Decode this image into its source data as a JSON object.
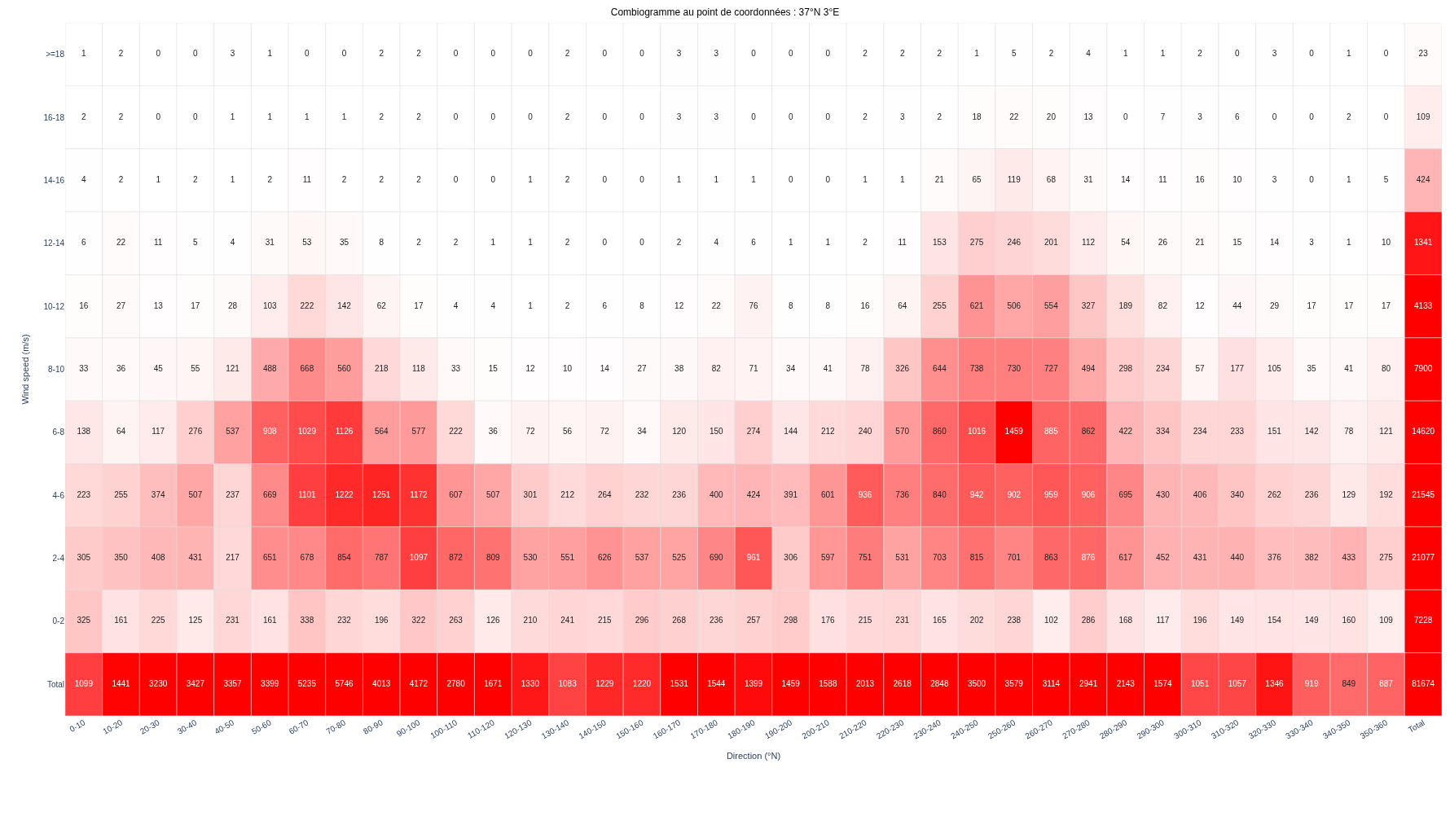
{
  "chart_data": {
    "type": "heatmap",
    "title": "Combiogramme au point de coordonnées : 37°N 3°E",
    "xlabel": "Direction (°N)",
    "ylabel": "Wind speed (m/s)",
    "categories": [
      "0-10",
      "10-20",
      "20-30",
      "30-40",
      "40-50",
      "50-60",
      "60-70",
      "70-80",
      "80-90",
      "90-100",
      "100-110",
      "110-120",
      "120-130",
      "130-140",
      "140-150",
      "150-160",
      "160-170",
      "170-180",
      "180-190",
      "190-200",
      "200-210",
      "210-220",
      "220-230",
      "230-240",
      "240-250",
      "250-260",
      "260-270",
      "270-280",
      "280-290",
      "290-300",
      "300-310",
      "310-320",
      "320-330",
      "330-340",
      "340-350",
      "350-360",
      "Total"
    ],
    "y_categories": [
      ">=18",
      "16-18",
      "14-16",
      "12-14",
      "10-12",
      "8-10",
      "6-8",
      "4-6",
      "2-4",
      "0-2",
      "Total"
    ],
    "cells": [
      [
        1,
        2,
        0,
        0,
        3,
        1,
        0,
        0,
        2,
        2,
        0,
        0,
        0,
        2,
        0,
        0,
        3,
        3,
        0,
        0,
        0,
        2,
        2,
        2,
        1,
        5,
        2,
        4,
        1,
        1,
        2,
        0,
        3,
        0,
        1,
        0,
        23
      ],
      [
        2,
        2,
        0,
        0,
        1,
        1,
        1,
        1,
        2,
        2,
        0,
        0,
        0,
        2,
        0,
        0,
        3,
        3,
        0,
        0,
        0,
        2,
        3,
        2,
        18,
        22,
        20,
        13,
        0,
        7,
        3,
        6,
        0,
        0,
        2,
        0,
        109
      ],
      [
        4,
        2,
        1,
        2,
        1,
        2,
        11,
        2,
        2,
        2,
        0,
        0,
        1,
        2,
        0,
        0,
        1,
        1,
        1,
        0,
        0,
        1,
        1,
        21,
        65,
        119,
        68,
        31,
        14,
        11,
        16,
        10,
        3,
        0,
        1,
        5,
        424
      ],
      [
        6,
        22,
        11,
        5,
        4,
        31,
        53,
        35,
        8,
        2,
        2,
        1,
        1,
        2,
        0,
        0,
        2,
        4,
        6,
        1,
        1,
        2,
        11,
        153,
        275,
        246,
        201,
        112,
        54,
        26,
        21,
        15,
        14,
        3,
        1,
        10,
        1341
      ],
      [
        16,
        27,
        13,
        17,
        28,
        103,
        222,
        142,
        62,
        17,
        4,
        4,
        1,
        2,
        6,
        8,
        12,
        22,
        76,
        8,
        8,
        16,
        64,
        255,
        621,
        506,
        554,
        327,
        189,
        82,
        12,
        44,
        29,
        17,
        17,
        17,
        4133
      ],
      [
        33,
        36,
        45,
        55,
        121,
        488,
        668,
        560,
        218,
        118,
        33,
        15,
        12,
        10,
        14,
        27,
        38,
        82,
        71,
        34,
        41,
        78,
        326,
        644,
        738,
        730,
        727,
        494,
        298,
        234,
        57,
        177,
        105,
        35,
        41,
        80,
        7900
      ],
      [
        138,
        64,
        117,
        276,
        537,
        908,
        1029,
        1126,
        564,
        577,
        222,
        36,
        72,
        56,
        72,
        34,
        120,
        150,
        274,
        144,
        212,
        240,
        570,
        860,
        1016,
        1459,
        885,
        862,
        422,
        334,
        234,
        233,
        151,
        142,
        78,
        121,
        14620
      ],
      [
        223,
        255,
        374,
        507,
        237,
        669,
        1101,
        1222,
        1251,
        1172,
        607,
        507,
        301,
        212,
        264,
        232,
        236,
        400,
        424,
        391,
        601,
        936,
        736,
        840,
        942,
        902,
        959,
        906,
        695,
        430,
        406,
        340,
        262,
        236,
        129,
        192,
        21545
      ],
      [
        305,
        350,
        408,
        431,
        217,
        651,
        678,
        854,
        787,
        1097,
        872,
        809,
        530,
        551,
        626,
        537,
        525,
        690,
        961,
        306,
        597,
        751,
        531,
        703,
        815,
        701,
        863,
        876,
        617,
        452,
        431,
        440,
        376,
        382,
        433,
        275,
        21077
      ],
      [
        325,
        161,
        225,
        125,
        231,
        161,
        338,
        232,
        196,
        322,
        263,
        126,
        210,
        241,
        215,
        296,
        268,
        236,
        257,
        298,
        176,
        215,
        231,
        165,
        202,
        238,
        102,
        286,
        168,
        117,
        196,
        149,
        154,
        149,
        160,
        109,
        7228
      ],
      [
        1099,
        1441,
        3230,
        3427,
        3357,
        3399,
        5235,
        5746,
        4013,
        4172,
        2780,
        1671,
        1330,
        1083,
        1229,
        1220,
        1531,
        1544,
        1399,
        1459,
        1588,
        2013,
        2618,
        2848,
        3500,
        3579,
        3114,
        2941,
        2143,
        1574,
        1051,
        1057,
        1346,
        919,
        849,
        887,
        81674
      ]
    ],
    "data_labels": true
  }
}
